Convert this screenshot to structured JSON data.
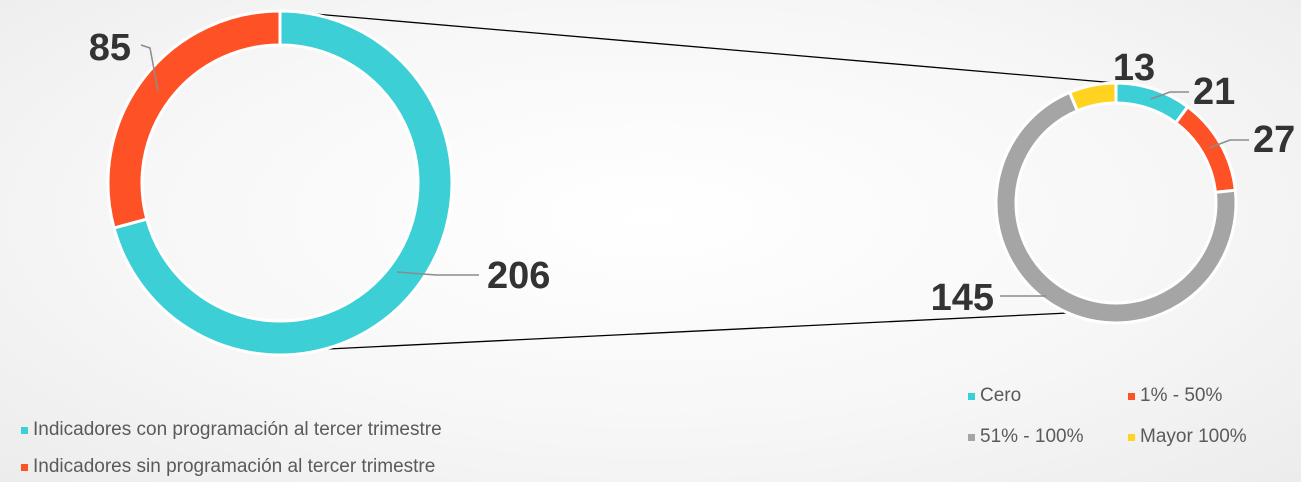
{
  "colors": {
    "teal": "#3ccfd6",
    "orange": "#ff5126",
    "gray": "#a5a5a5",
    "yellow": "#ffd320",
    "leader_line": "#8c8c8c",
    "label_text": "#333333",
    "legend_text": "#5a5a5a",
    "connector": "#000000"
  },
  "chart_data": [
    {
      "type": "pie",
      "donut": true,
      "title": "",
      "series": [
        {
          "name": "Indicadores con programación al tercer trimestre",
          "value": 206,
          "label": "206",
          "color": "#3ccfd6"
        },
        {
          "name": "Indicadores sin programación al tercer trimestre",
          "value": 85,
          "label": "85",
          "color": "#ff5126"
        }
      ],
      "legend_position": "bottom-left",
      "exploded_slice": "Indicadores con programación al tercer trimestre"
    },
    {
      "type": "pie",
      "donut": true,
      "title": "",
      "series": [
        {
          "name": "Cero",
          "value": 21,
          "label": "21",
          "color": "#3ccfd6"
        },
        {
          "name": "1% - 50%",
          "value": 27,
          "label": "27",
          "color": "#ff5126"
        },
        {
          "name": "51% - 100%",
          "value": 145,
          "label": "145",
          "color": "#a5a5a5"
        },
        {
          "name": "Mayor 100%",
          "value": 13,
          "label": "13",
          "color": "#ffd320"
        }
      ],
      "legend_position": "bottom-right"
    }
  ]
}
